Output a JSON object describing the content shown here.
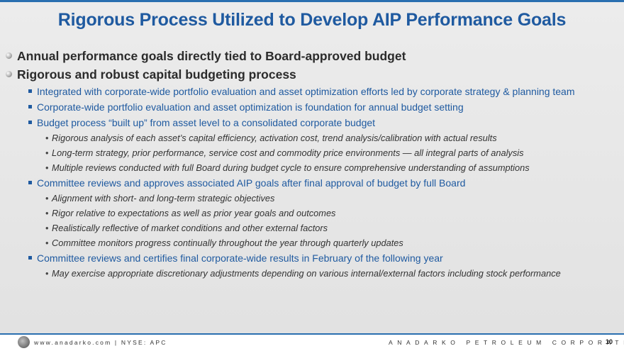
{
  "title": "Rigorous Process Utilized to Develop AIP Performance Goals",
  "bullets": [
    {
      "level": 1,
      "text": "Annual performance goals directly tied to Board-approved budget"
    },
    {
      "level": 1,
      "text": "Rigorous and robust capital budgeting process"
    },
    {
      "level": 2,
      "text": "Integrated with corporate-wide portfolio evaluation and asset optimization efforts led by corporate strategy & planning team"
    },
    {
      "level": 2,
      "text": "Corporate-wide portfolio evaluation and asset optimization is foundation for annual budget setting"
    },
    {
      "level": 2,
      "text": "Budget process “built up” from asset level to a consolidated corporate budget"
    },
    {
      "level": 3,
      "text": "Rigorous analysis of each asset’s capital efficiency, activation cost, trend analysis/calibration with actual results"
    },
    {
      "level": 3,
      "text": "Long-term strategy, prior performance, service cost and commodity price environments — all integral parts of analysis"
    },
    {
      "level": 3,
      "text": "Multiple reviews conducted with full Board during budget cycle to ensure comprehensive understanding of assumptions"
    },
    {
      "level": 2,
      "text": "Committee reviews and approves associated AIP goals after final approval of budget by full Board"
    },
    {
      "level": 3,
      "text": "Alignment with short- and long-term strategic objectives"
    },
    {
      "level": 3,
      "text": "Rigor relative to expectations as well as prior year goals and outcomes"
    },
    {
      "level": 3,
      "text": "Realistically reflective of market conditions and other external factors"
    },
    {
      "level": 3,
      "text": "Committee monitors progress continually throughout the year through quarterly updates"
    },
    {
      "level": 2,
      "text": "Committee reviews and certifies final corporate-wide results in February of the following year"
    },
    {
      "level": 3,
      "text": "May exercise appropriate discretionary adjustments depending on various internal/external factors including stock performance"
    }
  ],
  "footer": {
    "website": "www.anadarko.com | NYSE: APC",
    "company": "ANADARKO PETROLEUM CORPORATION",
    "page_number": "10",
    "logo_icon": "anadarko-logo-icon"
  },
  "colors": {
    "title_blue": "#1f5aa0",
    "accent_rule": "#2a6fb0",
    "level1_text": "#2b2b2b",
    "level3_text": "#333333"
  }
}
